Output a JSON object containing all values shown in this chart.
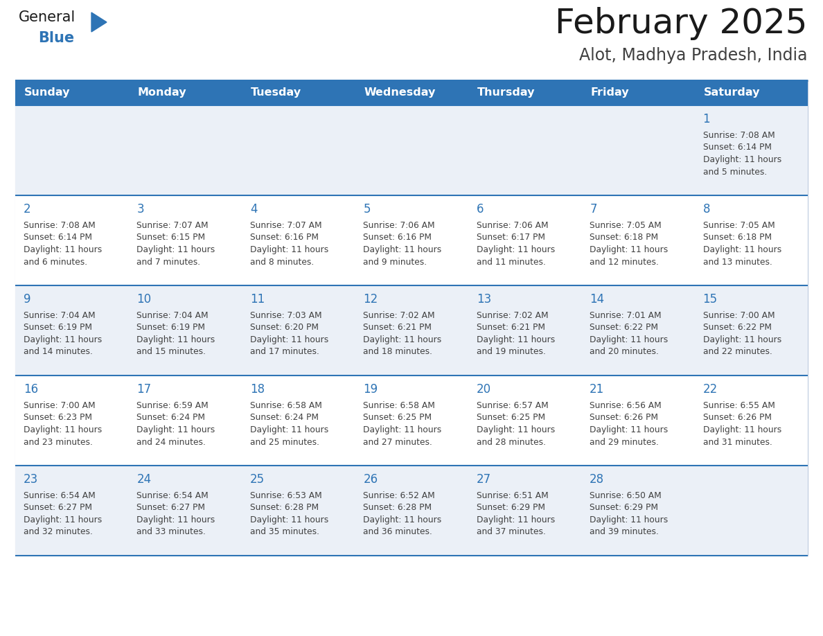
{
  "title": "February 2025",
  "subtitle": "Alot, Madhya Pradesh, India",
  "header_bg": "#2E74B5",
  "header_text_color": "#FFFFFF",
  "weekdays": [
    "Sunday",
    "Monday",
    "Tuesday",
    "Wednesday",
    "Thursday",
    "Friday",
    "Saturday"
  ],
  "row1_bg": "#EBF0F7",
  "row2_bg": "#FFFFFF",
  "border_color": "#2E74B5",
  "day_number_color": "#2E74B5",
  "info_text_color": "#404040",
  "logo_general_color": "#1a1a1a",
  "logo_blue_color": "#2E74B5",
  "logo_triangle_color": "#2E74B5",
  "calendar": [
    [
      null,
      null,
      null,
      null,
      null,
      null,
      {
        "day": 1,
        "sunrise": "7:08 AM",
        "sunset": "6:14 PM",
        "daylight_hours": 11,
        "daylight_minutes": 5
      }
    ],
    [
      {
        "day": 2,
        "sunrise": "7:08 AM",
        "sunset": "6:14 PM",
        "daylight_hours": 11,
        "daylight_minutes": 6
      },
      {
        "day": 3,
        "sunrise": "7:07 AM",
        "sunset": "6:15 PM",
        "daylight_hours": 11,
        "daylight_minutes": 7
      },
      {
        "day": 4,
        "sunrise": "7:07 AM",
        "sunset": "6:16 PM",
        "daylight_hours": 11,
        "daylight_minutes": 8
      },
      {
        "day": 5,
        "sunrise": "7:06 AM",
        "sunset": "6:16 PM",
        "daylight_hours": 11,
        "daylight_minutes": 9
      },
      {
        "day": 6,
        "sunrise": "7:06 AM",
        "sunset": "6:17 PM",
        "daylight_hours": 11,
        "daylight_minutes": 11
      },
      {
        "day": 7,
        "sunrise": "7:05 AM",
        "sunset": "6:18 PM",
        "daylight_hours": 11,
        "daylight_minutes": 12
      },
      {
        "day": 8,
        "sunrise": "7:05 AM",
        "sunset": "6:18 PM",
        "daylight_hours": 11,
        "daylight_minutes": 13
      }
    ],
    [
      {
        "day": 9,
        "sunrise": "7:04 AM",
        "sunset": "6:19 PM",
        "daylight_hours": 11,
        "daylight_minutes": 14
      },
      {
        "day": 10,
        "sunrise": "7:04 AM",
        "sunset": "6:19 PM",
        "daylight_hours": 11,
        "daylight_minutes": 15
      },
      {
        "day": 11,
        "sunrise": "7:03 AM",
        "sunset": "6:20 PM",
        "daylight_hours": 11,
        "daylight_minutes": 17
      },
      {
        "day": 12,
        "sunrise": "7:02 AM",
        "sunset": "6:21 PM",
        "daylight_hours": 11,
        "daylight_minutes": 18
      },
      {
        "day": 13,
        "sunrise": "7:02 AM",
        "sunset": "6:21 PM",
        "daylight_hours": 11,
        "daylight_minutes": 19
      },
      {
        "day": 14,
        "sunrise": "7:01 AM",
        "sunset": "6:22 PM",
        "daylight_hours": 11,
        "daylight_minutes": 20
      },
      {
        "day": 15,
        "sunrise": "7:00 AM",
        "sunset": "6:22 PM",
        "daylight_hours": 11,
        "daylight_minutes": 22
      }
    ],
    [
      {
        "day": 16,
        "sunrise": "7:00 AM",
        "sunset": "6:23 PM",
        "daylight_hours": 11,
        "daylight_minutes": 23
      },
      {
        "day": 17,
        "sunrise": "6:59 AM",
        "sunset": "6:24 PM",
        "daylight_hours": 11,
        "daylight_minutes": 24
      },
      {
        "day": 18,
        "sunrise": "6:58 AM",
        "sunset": "6:24 PM",
        "daylight_hours": 11,
        "daylight_minutes": 25
      },
      {
        "day": 19,
        "sunrise": "6:58 AM",
        "sunset": "6:25 PM",
        "daylight_hours": 11,
        "daylight_minutes": 27
      },
      {
        "day": 20,
        "sunrise": "6:57 AM",
        "sunset": "6:25 PM",
        "daylight_hours": 11,
        "daylight_minutes": 28
      },
      {
        "day": 21,
        "sunrise": "6:56 AM",
        "sunset": "6:26 PM",
        "daylight_hours": 11,
        "daylight_minutes": 29
      },
      {
        "day": 22,
        "sunrise": "6:55 AM",
        "sunset": "6:26 PM",
        "daylight_hours": 11,
        "daylight_minutes": 31
      }
    ],
    [
      {
        "day": 23,
        "sunrise": "6:54 AM",
        "sunset": "6:27 PM",
        "daylight_hours": 11,
        "daylight_minutes": 32
      },
      {
        "day": 24,
        "sunrise": "6:54 AM",
        "sunset": "6:27 PM",
        "daylight_hours": 11,
        "daylight_minutes": 33
      },
      {
        "day": 25,
        "sunrise": "6:53 AM",
        "sunset": "6:28 PM",
        "daylight_hours": 11,
        "daylight_minutes": 35
      },
      {
        "day": 26,
        "sunrise": "6:52 AM",
        "sunset": "6:28 PM",
        "daylight_hours": 11,
        "daylight_minutes": 36
      },
      {
        "day": 27,
        "sunrise": "6:51 AM",
        "sunset": "6:29 PM",
        "daylight_hours": 11,
        "daylight_minutes": 37
      },
      {
        "day": 28,
        "sunrise": "6:50 AM",
        "sunset": "6:29 PM",
        "daylight_hours": 11,
        "daylight_minutes": 39
      },
      null
    ]
  ]
}
